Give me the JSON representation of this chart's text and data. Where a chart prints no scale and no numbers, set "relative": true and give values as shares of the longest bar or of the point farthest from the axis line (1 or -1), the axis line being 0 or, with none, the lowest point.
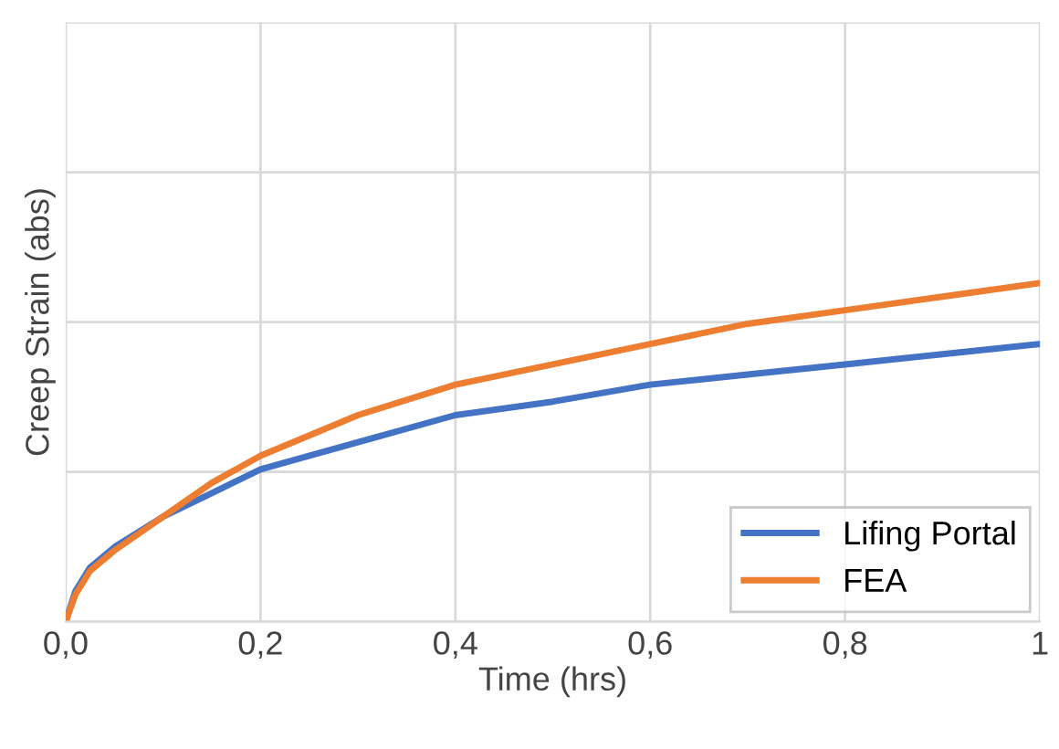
{
  "chart_data": {
    "type": "line",
    "xlabel": "Time (hrs)",
    "ylabel": "Creep Strain (abs)",
    "relative": true,
    "xlim": [
      0,
      1
    ],
    "xticks": [
      {
        "value": 0,
        "label": "0,0"
      },
      {
        "value": 0.2,
        "label": "0,2"
      },
      {
        "value": 0.4,
        "label": "0,4"
      },
      {
        "value": 0.6,
        "label": "0,6"
      },
      {
        "value": 0.8,
        "label": "0,8"
      },
      1
    ],
    "grid": true,
    "legend": "bottom right",
    "tick_labels": "x",
    "marker": "none",
    "line_style": "solid",
    "x": [
      0,
      0.01,
      0.025,
      0.05,
      0.1,
      0.15,
      0.2,
      0.3,
      0.4,
      0.5,
      0.6,
      0.7,
      0.8,
      0.9,
      1.0
    ],
    "series": [
      {
        "name": "Lifing Portal",
        "color": "#4472c4",
        "values": [
          0,
          0.09,
          0.16,
          0.22,
          0.31,
          0.38,
          0.45,
          0.53,
          0.61,
          0.65,
          0.7,
          0.73,
          0.76,
          0.79,
          0.82
        ]
      },
      {
        "name": "FEA",
        "color": "#ed7d31",
        "values": [
          0,
          0.08,
          0.15,
          0.21,
          0.31,
          0.41,
          0.49,
          0.61,
          0.7,
          0.76,
          0.82,
          0.88,
          0.92,
          0.96,
          1.0
        ]
      }
    ]
  }
}
